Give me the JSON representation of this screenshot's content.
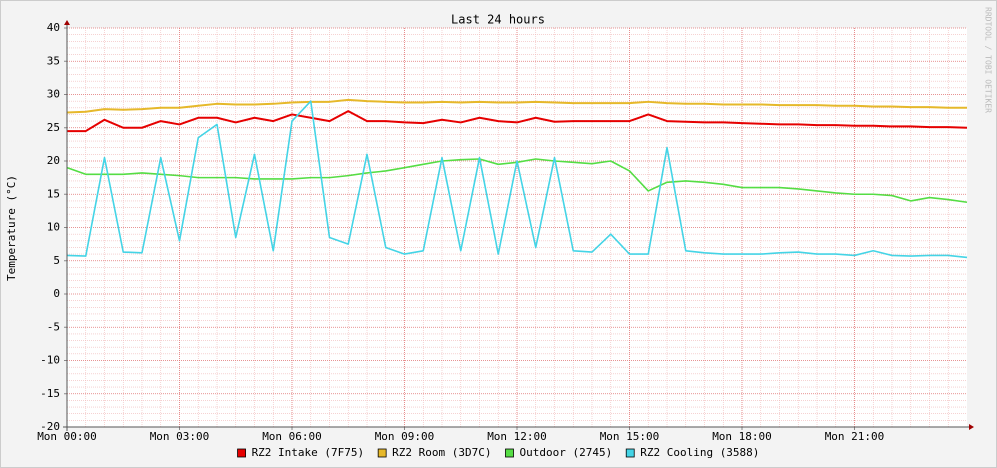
{
  "chart_data": {
    "type": "line",
    "title": "Last 24 hours",
    "y_label": "Temperature (°C)",
    "watermark": "RRDTOOL / TOBI OETIKER",
    "x": [
      0,
      0.5,
      1,
      1.5,
      2,
      2.5,
      3,
      3.5,
      4,
      4.5,
      5,
      5.5,
      6,
      6.5,
      7,
      7.5,
      8,
      8.5,
      9,
      9.5,
      10,
      10.5,
      11,
      11.5,
      12,
      12.5,
      13,
      13.5,
      14,
      14.5,
      15,
      15.5,
      16,
      16.5,
      17,
      17.5,
      18,
      18.5,
      19,
      19.5,
      20,
      20.5,
      21,
      21.5,
      22,
      22.5,
      23,
      23.5,
      24
    ],
    "xlim": [
      0,
      24
    ],
    "xticks": [
      {
        "value": 0,
        "label": "Mon 00:00"
      },
      {
        "value": 3,
        "label": "Mon 03:00"
      },
      {
        "value": 6,
        "label": "Mon 06:00"
      },
      {
        "value": 9,
        "label": "Mon 09:00"
      },
      {
        "value": 12,
        "label": "Mon 12:00"
      },
      {
        "value": 15,
        "label": "Mon 15:00"
      },
      {
        "value": 18,
        "label": "Mon 18:00"
      },
      {
        "value": 21,
        "label": "Mon 21:00"
      }
    ],
    "ylim": [
      -20,
      40
    ],
    "yticks": [
      -20,
      -15,
      -10,
      -5,
      0,
      5,
      10,
      15,
      20,
      25,
      30,
      35,
      40
    ],
    "grid": true,
    "legend": "bottom",
    "series": [
      {
        "name": "RZ2 Intake (7F75)",
        "color": "#e60000",
        "values": [
          24.5,
          24.5,
          26.2,
          25,
          25,
          26,
          25.5,
          26.5,
          26.5,
          25.8,
          26.5,
          26,
          27,
          26.5,
          26,
          27.5,
          26,
          26,
          25.8,
          25.7,
          26.2,
          25.8,
          26.5,
          26,
          25.8,
          26.5,
          25.9,
          26,
          26,
          26,
          26,
          27,
          26,
          25.9,
          25.8,
          25.8,
          25.7,
          25.6,
          25.5,
          25.5,
          25.4,
          25.4,
          25.3,
          25.3,
          25.2,
          25.2,
          25.1,
          25.1,
          25
        ]
      },
      {
        "name": "RZ2 Room (3D7C)",
        "color": "#e6b82a",
        "values": [
          27.3,
          27.4,
          27.8,
          27.7,
          27.8,
          28,
          28,
          28.3,
          28.6,
          28.5,
          28.5,
          28.6,
          28.8,
          28.9,
          28.9,
          29.2,
          29,
          28.9,
          28.8,
          28.8,
          28.9,
          28.8,
          28.9,
          28.8,
          28.8,
          28.9,
          28.8,
          28.7,
          28.7,
          28.7,
          28.7,
          28.9,
          28.7,
          28.6,
          28.6,
          28.5,
          28.5,
          28.5,
          28.4,
          28.4,
          28.4,
          28.3,
          28.3,
          28.2,
          28.2,
          28.1,
          28.1,
          28,
          28
        ]
      },
      {
        "name": "Outdoor (2745)",
        "color": "#55dd44",
        "values": [
          19,
          18,
          18,
          18,
          18.2,
          18,
          17.8,
          17.5,
          17.5,
          17.5,
          17.3,
          17.3,
          17.3,
          17.5,
          17.5,
          17.8,
          18.2,
          18.5,
          19,
          19.5,
          20,
          20.2,
          20.3,
          19.5,
          19.8,
          20.3,
          20,
          19.8,
          19.6,
          20,
          18.5,
          15.5,
          16.8,
          17,
          16.8,
          16.5,
          16,
          16,
          16,
          15.8,
          15.5,
          15.2,
          15,
          15,
          14.8,
          14,
          14.5,
          14.2,
          13.8
        ]
      },
      {
        "name": "RZ2 Cooling (3588)",
        "color": "#44d4e6",
        "values": [
          5.8,
          5.7,
          20.5,
          6.3,
          6.2,
          20.5,
          8,
          23.5,
          25.5,
          8.5,
          21,
          6.5,
          26,
          29,
          8.5,
          7.5,
          21,
          7,
          6,
          6.5,
          20.5,
          6.5,
          20.5,
          6,
          20,
          7,
          20.5,
          6.5,
          6.3,
          9,
          6,
          6,
          22,
          6.5,
          6.2,
          6,
          6,
          6,
          6.2,
          6.3,
          6,
          6,
          5.8,
          6.5,
          5.8,
          5.7,
          5.8,
          5.8,
          5.5
        ]
      }
    ]
  }
}
